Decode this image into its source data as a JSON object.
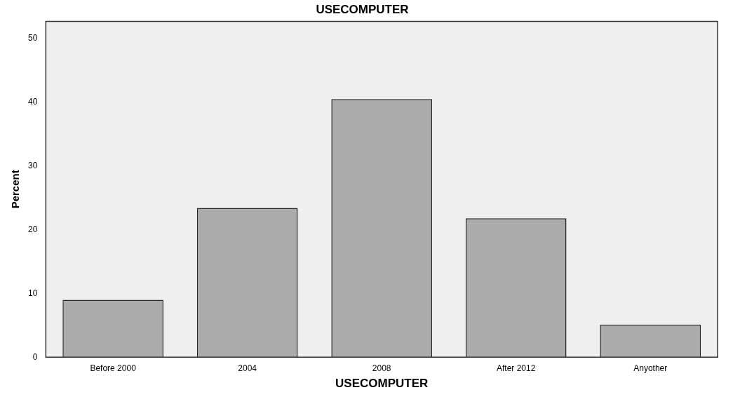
{
  "chart_data": {
    "type": "bar",
    "title": "USECOMPUTER",
    "xlabel": "USECOMPUTER",
    "ylabel": "Percent",
    "categories": [
      "Before 2000",
      "2004",
      "2008",
      "After 2012",
      "Anyother"
    ],
    "values": [
      9.0,
      23.4,
      40.5,
      21.8,
      5.1
    ],
    "color": "#ababab",
    "ylim": [
      0,
      52.7
    ],
    "yticks": [
      0,
      10,
      20,
      30,
      40,
      50
    ],
    "grid": false,
    "legend": false
  }
}
